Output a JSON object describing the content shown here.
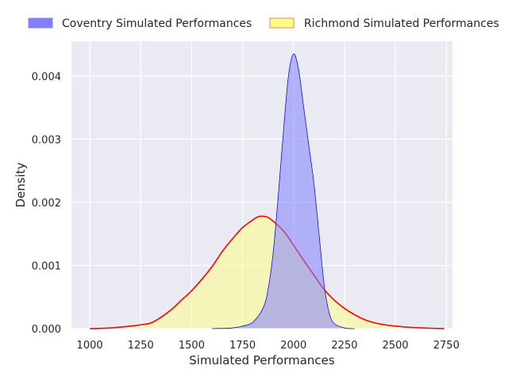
{
  "chart_data": {
    "type": "area",
    "xlabel": "Simulated Performances",
    "ylabel": "Density",
    "xlim": [
      910,
      2780
    ],
    "ylim": [
      0,
      0.00455
    ],
    "x_ticks": [
      1000,
      1250,
      1500,
      1750,
      2000,
      2250,
      2500,
      2750
    ],
    "y_ticks": [
      0.0,
      0.001,
      0.002,
      0.003,
      0.004
    ],
    "x_tick_labels": [
      "1000",
      "1250",
      "1500",
      "1750",
      "2000",
      "2250",
      "2500",
      "2750"
    ],
    "y_tick_labels": [
      "0.000",
      "0.001",
      "0.002",
      "0.003",
      "0.004"
    ],
    "grid": true,
    "legend_position": "top-outside",
    "series": [
      {
        "name": "Coventry Simulated Performances",
        "fill_color": "#8080ff",
        "line_color": "#0000cc",
        "x": [
          1600,
          1700,
          1750,
          1800,
          1850,
          1875,
          1900,
          1925,
          1950,
          1975,
          2000,
          2025,
          2050,
          2075,
          2100,
          2125,
          2150,
          2175,
          2200,
          2250,
          2300
        ],
        "y": [
          0.0,
          1e-05,
          4e-05,
          0.0001,
          0.00032,
          0.00062,
          0.0012,
          0.0021,
          0.0031,
          0.004,
          0.00435,
          0.0041,
          0.0035,
          0.0029,
          0.0023,
          0.0015,
          0.0007,
          0.00025,
          8e-05,
          1e-05,
          0.0
        ]
      },
      {
        "name": "Richmond Simulated Performances",
        "fill_color": "#ffff80",
        "line_color": "#ff0000",
        "x": [
          1000,
          1100,
          1200,
          1250,
          1300,
          1350,
          1400,
          1450,
          1500,
          1550,
          1600,
          1650,
          1700,
          1750,
          1800,
          1825,
          1850,
          1875,
          1900,
          1950,
          2000,
          2050,
          2100,
          2150,
          2200,
          2250,
          2300,
          2350,
          2400,
          2450,
          2500,
          2550,
          2600,
          2650,
          2700,
          2740
        ],
        "y": [
          0.0,
          1e-05,
          4e-05,
          6e-05,
          9e-05,
          0.00018,
          0.0003,
          0.00045,
          0.0006,
          0.00078,
          0.00098,
          0.00122,
          0.00142,
          0.0016,
          0.00172,
          0.00177,
          0.00178,
          0.00176,
          0.0017,
          0.00155,
          0.00132,
          0.00108,
          0.00085,
          0.00062,
          0.00045,
          0.00032,
          0.00022,
          0.00014,
          9e-05,
          6e-05,
          4e-05,
          2.5e-05,
          1.5e-05,
          8e-06,
          3e-06,
          0.0
        ]
      }
    ]
  }
}
